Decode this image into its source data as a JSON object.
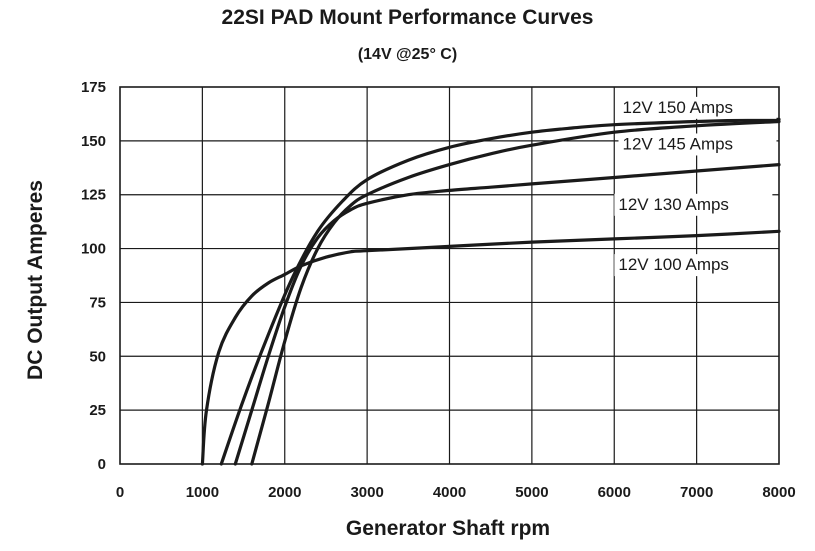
{
  "chart_data": {
    "type": "line",
    "title": "22SI PAD Mount Performance Curves",
    "subtitle": "(14V @25° C)",
    "xlabel": "Generator Shaft rpm",
    "ylabel": "DC Output Amperes",
    "xlim": [
      0,
      8000
    ],
    "ylim": [
      0,
      175
    ],
    "xticks": [
      0,
      1000,
      2000,
      3000,
      4000,
      5000,
      6000,
      7000,
      8000
    ],
    "yticks": [
      0,
      25,
      50,
      75,
      100,
      125,
      150,
      175
    ],
    "grid": true,
    "series": [
      {
        "name": "12V 150 Amps",
        "x": [
          1230,
          1500,
          1800,
          2100,
          2400,
          2700,
          3000,
          3500,
          4000,
          4500,
          5000,
          5500,
          6000,
          7000,
          8000
        ],
        "y": [
          0,
          30,
          60,
          87,
          108,
          122,
          132,
          141,
          147,
          151,
          154,
          156,
          157.5,
          159,
          160
        ]
      },
      {
        "name": "12V 145 Amps",
        "x": [
          1600,
          1800,
          2000,
          2200,
          2400,
          2600,
          2800,
          3000,
          3500,
          4000,
          4500,
          5000,
          6000,
          7000,
          8000
        ],
        "y": [
          0,
          28,
          57,
          82,
          100,
          112,
          120,
          125,
          133,
          139,
          144,
          148,
          154,
          157,
          159
        ]
      },
      {
        "name": "12V 130 Amps",
        "x": [
          1400,
          1600,
          1800,
          2000,
          2200,
          2400,
          2600,
          2800,
          3000,
          3500,
          4000,
          4500,
          5000,
          6000,
          7000,
          8000
        ],
        "y": [
          0,
          25,
          50,
          73,
          92,
          105,
          113,
          118,
          121,
          125,
          127,
          128.5,
          130,
          133,
          136,
          139
        ]
      },
      {
        "name": "12V 100 Amps",
        "x": [
          1000,
          1050,
          1200,
          1400,
          1600,
          1800,
          2000,
          2200,
          2500,
          2800,
          3000,
          4000,
          5000,
          6000,
          7000,
          8000
        ],
        "y": [
          0,
          25,
          52,
          68,
          78,
          84,
          88,
          92,
          96,
          98.5,
          99,
          101,
          103,
          104.5,
          106,
          108
        ]
      }
    ],
    "series_label_positions": [
      {
        "x": 6100,
        "y": 163
      },
      {
        "x": 6100,
        "y": 146
      },
      {
        "x": 6050,
        "y": 118
      },
      {
        "x": 6050,
        "y": 90
      }
    ]
  },
  "colors": {
    "line": "#1a1a1a",
    "grid": "#1a1a1a",
    "background": "#ffffff"
  }
}
